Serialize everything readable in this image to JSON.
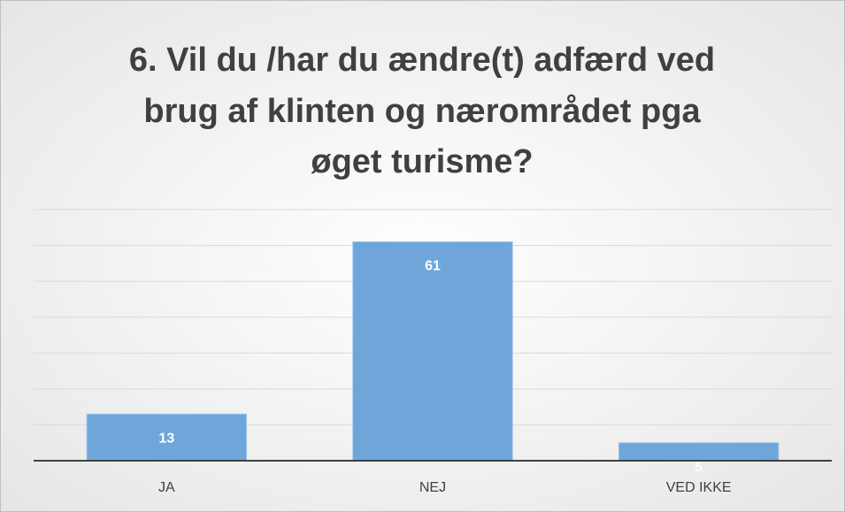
{
  "chart_data": {
    "type": "bar",
    "title": [
      "6. Vil du /har du ændre(t) adfærd ved",
      "brug af klinten og nærområdet pga",
      "øget turisme?"
    ],
    "categories": [
      "JA",
      "NEJ",
      "VED IKKE"
    ],
    "values": [
      13,
      61,
      5
    ],
    "color": "#6fa6da",
    "ylim": [
      0,
      70
    ],
    "yticks": [
      0,
      10,
      20,
      30,
      40,
      50,
      60,
      70
    ],
    "grid": true
  }
}
